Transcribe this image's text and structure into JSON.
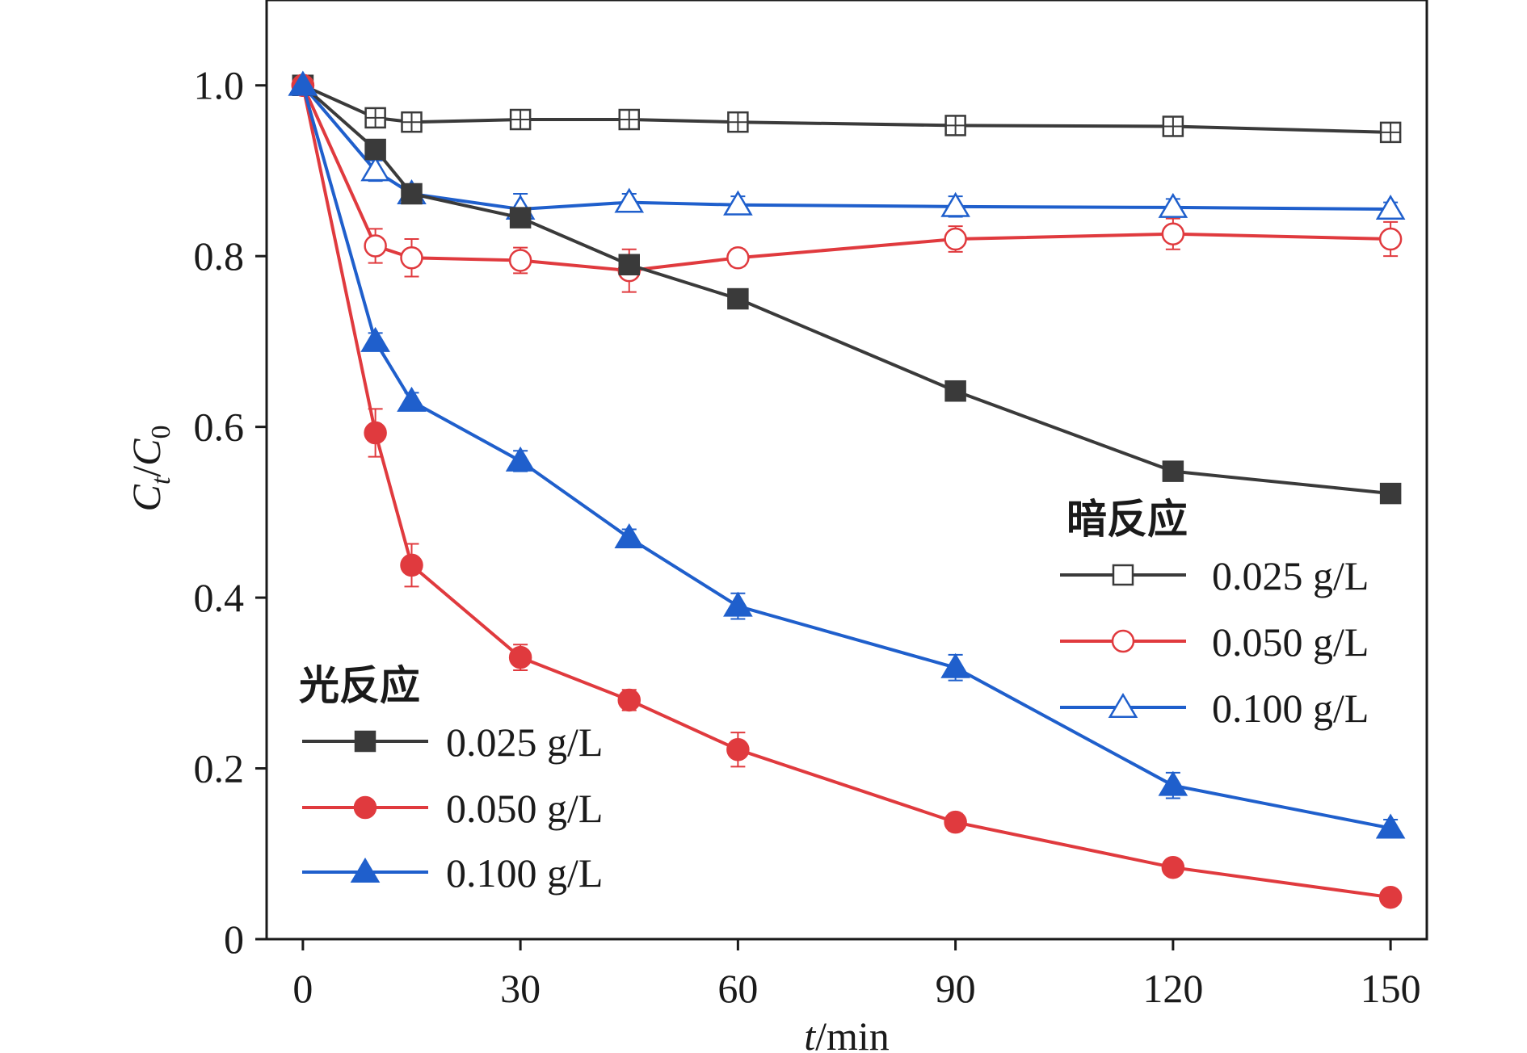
{
  "chart_data": {
    "type": "line",
    "xlabel_italic": "t",
    "xlabel_unit": "/min",
    "ylabel": {
      "c1": "C",
      "sub1": "t",
      "slash": "/",
      "c2": "C",
      "sub2": "0"
    },
    "xlim": [
      -5,
      155
    ],
    "ylim": [
      0,
      1.1
    ],
    "x_ticks": [
      0,
      30,
      60,
      90,
      120,
      150
    ],
    "x_tick_labels": [
      "0",
      "30",
      "60",
      "90",
      "120",
      "150"
    ],
    "y_ticks": [
      0,
      0.2,
      0.4,
      0.6,
      0.8,
      1.0
    ],
    "y_tick_labels": [
      "0",
      "0.2",
      "0.4",
      "0.6",
      "0.8",
      "1.0"
    ],
    "grid": false,
    "x": [
      0,
      10,
      15,
      30,
      45,
      60,
      90,
      120,
      150
    ],
    "series": [
      {
        "group": "light",
        "name": "0.025 g/L",
        "color": "#3a3a3a",
        "marker": "square",
        "filled": true,
        "values": [
          1.0,
          0.925,
          0.873,
          0.845,
          0.79,
          0.75,
          0.642,
          0.548,
          0.522
        ],
        "errors": [
          0,
          0.01,
          0.01,
          0.01,
          0.01,
          0.01,
          0.01,
          0.01,
          0.01
        ]
      },
      {
        "group": "light",
        "name": "0.050 g/L",
        "color": "#e03a3e",
        "marker": "circle",
        "filled": true,
        "values": [
          1.0,
          0.593,
          0.438,
          0.33,
          0.28,
          0.222,
          0.137,
          0.084,
          0.049
        ],
        "errors": [
          0,
          0.028,
          0.025,
          0.015,
          0.012,
          0.02,
          0.01,
          0.008,
          0.008
        ]
      },
      {
        "group": "light",
        "name": "0.100 g/L",
        "color": "#1f5fcc",
        "marker": "triangle",
        "filled": true,
        "values": [
          1.0,
          0.7,
          0.63,
          0.56,
          0.47,
          0.39,
          0.318,
          0.18,
          0.13
        ],
        "errors": [
          0,
          0.01,
          0.01,
          0.012,
          0.01,
          0.015,
          0.015,
          0.015,
          0.01
        ]
      },
      {
        "group": "dark",
        "name": "0.025 g/L",
        "color": "#3a3a3a",
        "marker": "square-cross",
        "filled": false,
        "values": [
          1.0,
          0.962,
          0.957,
          0.96,
          0.96,
          0.957,
          0.953,
          0.952,
          0.945
        ],
        "errors": [
          0,
          0.005,
          0.005,
          0.005,
          0.005,
          0.005,
          0.005,
          0.005,
          0.005
        ]
      },
      {
        "group": "dark",
        "name": "0.050 g/L",
        "color": "#e03a3e",
        "marker": "circle",
        "filled": false,
        "values": [
          1.0,
          0.812,
          0.798,
          0.795,
          0.783,
          0.798,
          0.82,
          0.826,
          0.82
        ],
        "errors": [
          0,
          0.02,
          0.022,
          0.015,
          0.025,
          0.01,
          0.015,
          0.018,
          0.02
        ]
      },
      {
        "group": "dark",
        "name": "0.100 g/L",
        "color": "#1f5fcc",
        "marker": "triangle",
        "filled": false,
        "values": [
          1.0,
          0.9,
          0.873,
          0.855,
          0.863,
          0.86,
          0.858,
          0.857,
          0.855
        ],
        "errors": [
          0,
          0.012,
          0.01,
          0.018,
          0.01,
          0.01,
          0.012,
          0.01,
          0.008
        ]
      }
    ],
    "legend_light": {
      "title": "光反应",
      "placement": "bottom-left",
      "items": [
        {
          "label": "0.025 g/L"
        },
        {
          "label": "0.050 g/L"
        },
        {
          "label": "0.100 g/L"
        }
      ]
    },
    "legend_dark": {
      "title": "暗反应",
      "placement": "middle-right",
      "items": [
        {
          "label": "0.025 g/L"
        },
        {
          "label": "0.050 g/L"
        },
        {
          "label": "0.100 g/L"
        }
      ]
    }
  }
}
